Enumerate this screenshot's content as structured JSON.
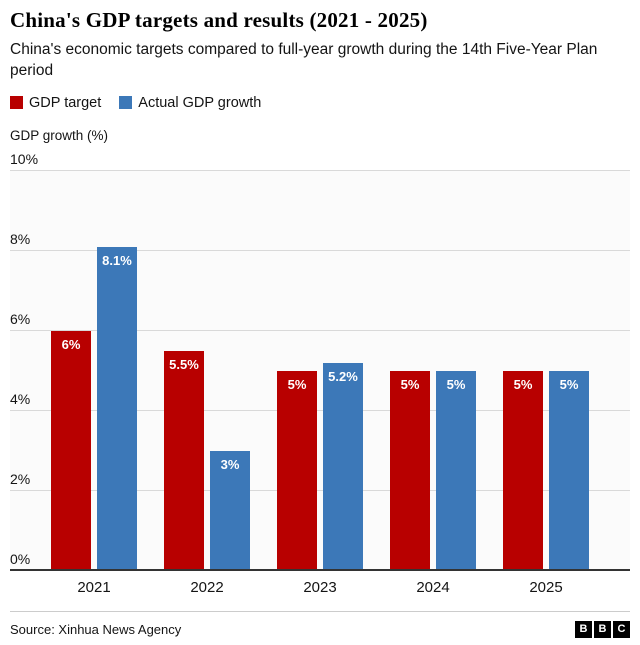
{
  "header": {
    "title": "China's GDP targets and results (2021 - 2025)",
    "subtitle": "China's economic targets compared to full-year growth during the 14th Five-Year Plan period"
  },
  "legend": [
    {
      "label": "GDP target",
      "color": "#b80000",
      "icon": "red-square-swatch"
    },
    {
      "label": "Actual GDP growth",
      "color": "#3c78b8",
      "icon": "blue-square-swatch"
    }
  ],
  "chart_data": {
    "type": "bar",
    "title": "China's GDP targets and results (2021 - 2025)",
    "subtitle": "China's economic targets compared to full-year growth during the 14th Five-Year Plan period",
    "xlabel": "",
    "ylabel": "GDP growth (%)",
    "categories": [
      "2021",
      "2022",
      "2023",
      "2024",
      "2025"
    ],
    "series": [
      {
        "name": "GDP target",
        "color": "#b80000",
        "values": [
          6,
          5.5,
          5,
          5,
          5
        ],
        "labels": [
          "6%",
          "5.5%",
          "5%",
          "5%",
          "5%"
        ]
      },
      {
        "name": "Actual GDP growth",
        "color": "#3c78b8",
        "values": [
          8.1,
          3,
          5.2,
          5,
          5
        ],
        "labels": [
          "8.1%",
          "3%",
          "5.2%",
          "5%",
          "5%"
        ]
      }
    ],
    "ylim": [
      0,
      10
    ],
    "yticks": [
      0,
      2,
      4,
      6,
      8,
      10
    ],
    "ytick_labels": [
      "0%",
      "2%",
      "4%",
      "6%",
      "8%",
      "10%"
    ],
    "grid": true,
    "legend_position": "top"
  },
  "footer": {
    "source": "Source: Xinhua News Agency",
    "logo_letters": [
      "B",
      "B",
      "C"
    ]
  }
}
